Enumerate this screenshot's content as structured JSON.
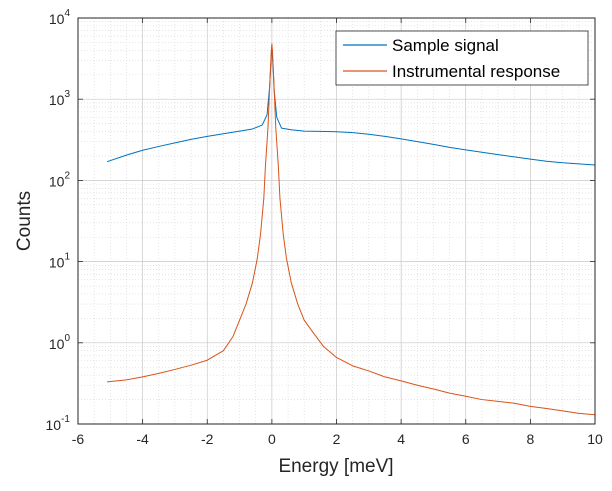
{
  "chart_data": {
    "type": "line",
    "title": "",
    "xlabel": "Energy [meV]",
    "ylabel": "Counts",
    "xlim": [
      -6,
      10
    ],
    "ylim": [
      0.1,
      10000
    ],
    "yscale": "log",
    "grid": "on (major and minor)",
    "legend_position": "top-right",
    "x_ticks": [
      {
        "value": -6,
        "label": "-6"
      },
      {
        "value": -4,
        "label": "-4"
      },
      {
        "value": -2,
        "label": "-2"
      },
      {
        "value": 0,
        "label": "0"
      },
      {
        "value": 2,
        "label": "2"
      },
      {
        "value": 4,
        "label": "4"
      },
      {
        "value": 6,
        "label": "6"
      },
      {
        "value": 8,
        "label": "8"
      },
      {
        "value": 10,
        "label": "10"
      }
    ],
    "y_ticks": [
      {
        "value": 0.1,
        "base": "10",
        "exp": "-1"
      },
      {
        "value": 1,
        "base": "10",
        "exp": "0"
      },
      {
        "value": 10,
        "base": "10",
        "exp": "1"
      },
      {
        "value": 100,
        "base": "10",
        "exp": "2"
      },
      {
        "value": 1000,
        "base": "10",
        "exp": "3"
      },
      {
        "value": 10000,
        "base": "10",
        "exp": "4"
      }
    ],
    "series": [
      {
        "name": "Sample signal",
        "color": "#0072BD",
        "points": [
          [
            -5.1,
            170
          ],
          [
            -4.5,
            205
          ],
          [
            -4,
            235
          ],
          [
            -3.5,
            262
          ],
          [
            -3,
            290
          ],
          [
            -2.5,
            320
          ],
          [
            -2,
            348
          ],
          [
            -1.5,
            375
          ],
          [
            -1,
            405
          ],
          [
            -0.6,
            430
          ],
          [
            -0.3,
            480
          ],
          [
            -0.15,
            640
          ],
          [
            -0.07,
            1400
          ],
          [
            -0.03,
            2800
          ],
          [
            0,
            4500
          ],
          [
            0.03,
            2800
          ],
          [
            0.07,
            1300
          ],
          [
            0.15,
            600
          ],
          [
            0.3,
            440
          ],
          [
            0.6,
            420
          ],
          [
            1,
            405
          ],
          [
            1.5,
            402
          ],
          [
            2,
            398
          ],
          [
            2.5,
            388
          ],
          [
            3,
            370
          ],
          [
            3.5,
            348
          ],
          [
            4,
            325
          ],
          [
            4.5,
            300
          ],
          [
            5,
            278
          ],
          [
            5.5,
            255
          ],
          [
            6,
            238
          ],
          [
            6.5,
            222
          ],
          [
            7,
            208
          ],
          [
            7.5,
            195
          ],
          [
            8,
            183
          ],
          [
            8.5,
            172
          ],
          [
            9,
            165
          ],
          [
            9.5,
            160
          ],
          [
            10,
            155
          ]
        ]
      },
      {
        "name": "Instrumental response",
        "color": "#D95319",
        "points": [
          [
            -5.1,
            0.33
          ],
          [
            -4.5,
            0.35
          ],
          [
            -4,
            0.38
          ],
          [
            -3.5,
            0.42
          ],
          [
            -3,
            0.47
          ],
          [
            -2.5,
            0.53
          ],
          [
            -2,
            0.61
          ],
          [
            -1.5,
            0.8
          ],
          [
            -1.2,
            1.2
          ],
          [
            -1,
            1.9
          ],
          [
            -0.8,
            3.0
          ],
          [
            -0.6,
            5.5
          ],
          [
            -0.45,
            11
          ],
          [
            -0.35,
            22
          ],
          [
            -0.25,
            60
          ],
          [
            -0.2,
            150
          ],
          [
            -0.12,
            450
          ],
          [
            -0.06,
            1700
          ],
          [
            -0.02,
            3800
          ],
          [
            0,
            4800
          ],
          [
            0.02,
            3800
          ],
          [
            0.06,
            1700
          ],
          [
            0.12,
            450
          ],
          [
            0.2,
            150
          ],
          [
            0.25,
            60
          ],
          [
            0.35,
            22
          ],
          [
            0.45,
            11
          ],
          [
            0.6,
            5.5
          ],
          [
            0.8,
            3.0
          ],
          [
            1,
            1.9
          ],
          [
            1.3,
            1.3
          ],
          [
            1.6,
            0.9
          ],
          [
            2,
            0.66
          ],
          [
            2.5,
            0.52
          ],
          [
            3,
            0.45
          ],
          [
            3.5,
            0.38
          ],
          [
            4,
            0.34
          ],
          [
            4.5,
            0.3
          ],
          [
            5,
            0.27
          ],
          [
            5.5,
            0.24
          ],
          [
            6,
            0.22
          ],
          [
            6.5,
            0.2
          ],
          [
            7,
            0.19
          ],
          [
            7.5,
            0.18
          ],
          [
            8,
            0.165
          ],
          [
            8.5,
            0.155
          ],
          [
            9,
            0.145
          ],
          [
            9.5,
            0.135
          ],
          [
            10,
            0.13
          ]
        ]
      }
    ]
  }
}
